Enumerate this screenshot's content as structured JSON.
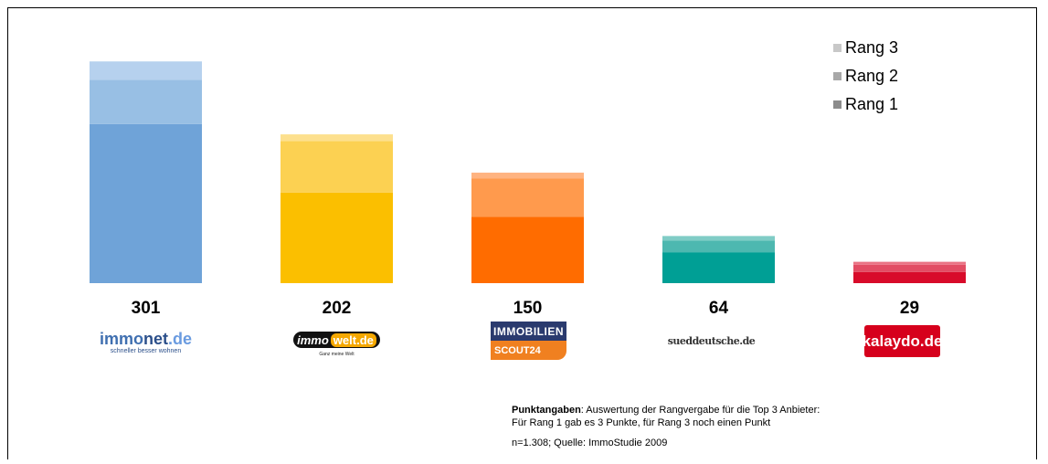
{
  "chart_data": {
    "type": "bar",
    "stacked": true,
    "categories": [
      "immonet.de",
      "immowelt.de",
      "IMMOBILIEN SCOUT24",
      "sueddeutsche.de",
      "kalaydo.de"
    ],
    "totals": [
      301,
      202,
      150,
      64,
      29
    ],
    "series": [
      {
        "name": "Rang 1",
        "values": [
          216,
          123,
          90,
          42,
          15
        ]
      },
      {
        "name": "Rang 2",
        "values": [
          60,
          70,
          52,
          16,
          10
        ]
      },
      {
        "name": "Rang 3",
        "values": [
          25,
          9,
          8,
          6,
          4
        ]
      }
    ],
    "legend_position": "top-right",
    "colors": {
      "Rang 1": [
        "#6fa3d8",
        "#fbbf00",
        "#ff6c00",
        "#009f95",
        "#d80b2a"
      ],
      "Rang 2": [
        "#98bfe4",
        "#fcd152",
        "#ff9a4d",
        "#4db8b0",
        "#e24d64"
      ],
      "Rang 3": [
        "#b6d1ee",
        "#fde08e",
        "#ffb380",
        "#80ccc6",
        "#ea7485"
      ],
      "legend": {
        "Rang 3": "#c8c8c8",
        "Rang 2": "#a8a8a8",
        "Rang 1": "#8c8c8c"
      }
    },
    "ylim": [
      0,
      310
    ],
    "grid": false
  },
  "legend": [
    "Rang 3",
    "Rang 2",
    "Rang 1"
  ],
  "logos": {
    "immonet": {
      "main_a": "immo",
      "main_b": "net",
      "main_c": ".de",
      "sub": "schneller besser wohnen"
    },
    "immowelt": {
      "a": "immo",
      "b": "welt.de",
      "tag": "Ganz meine Welt"
    },
    "scout": {
      "top": "IMMOBILIEN",
      "bottom": "SCOUT24"
    },
    "sz": {
      "text": "sueddeutsche.de"
    },
    "kalaydo": {
      "text": "kalaydo.de"
    }
  },
  "footnote": {
    "bold": "Punktangaben",
    "line1_rest": ": Auswertung der Rangvergabe für die Top 3 Anbieter:",
    "line2": "Für Rang 1 gab es 3 Punkte, für Rang 3 noch einen Punkt",
    "source": "n=1.308; Quelle: ImmoStudie 2009"
  }
}
